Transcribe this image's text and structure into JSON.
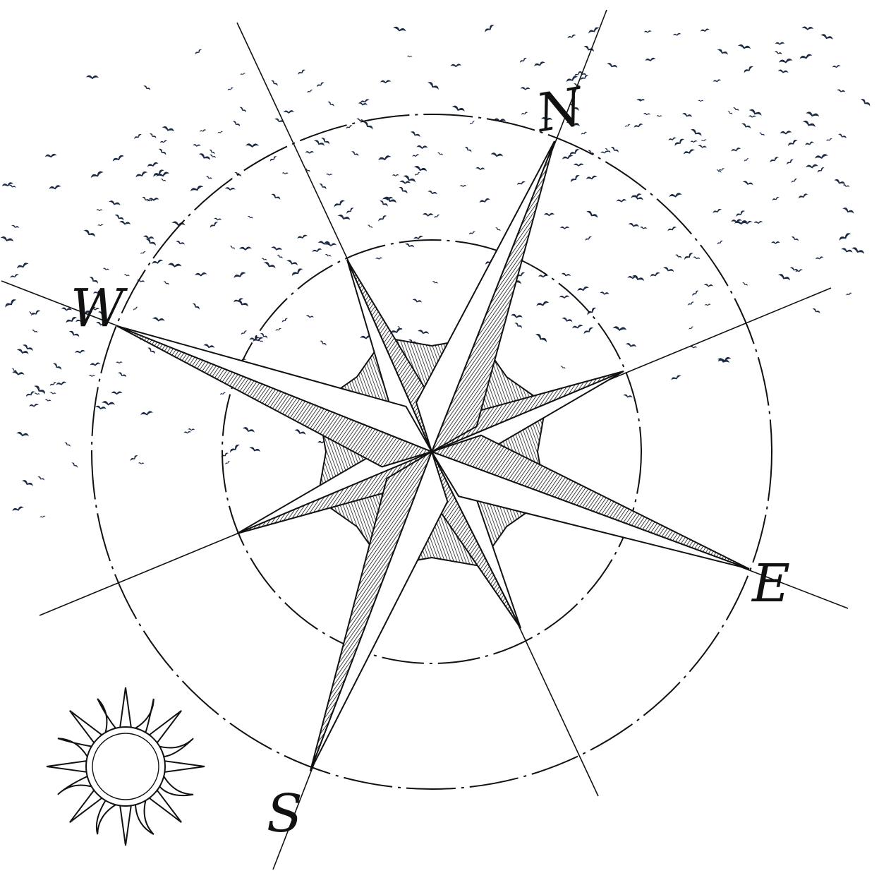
{
  "illustration": {
    "subject": "compass-rose",
    "ink_color": "#111111",
    "bird_color": "#1c2a44",
    "background": "#ffffff",
    "cardinals": {
      "north": "N",
      "east": "E",
      "south": "S",
      "west": "W"
    },
    "decorations": [
      "sun-icon",
      "bird-flock"
    ]
  }
}
